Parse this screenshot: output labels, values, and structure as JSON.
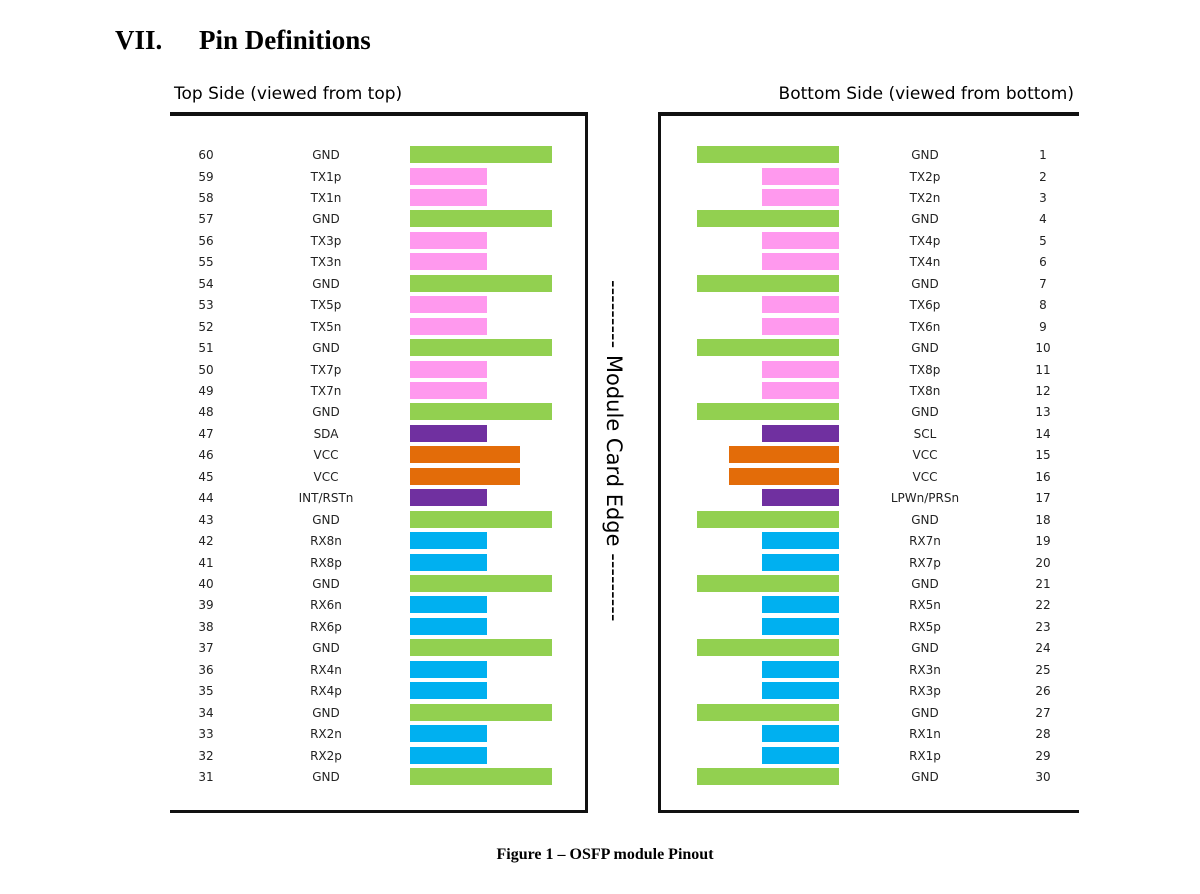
{
  "section": {
    "number": "VII.",
    "title": "Pin Definitions"
  },
  "top_side_label": "Top Side (viewed from top)",
  "bottom_side_label": "Bottom Side (viewed from bottom)",
  "edge_label": "--------- Module Card Edge ---------",
  "figure_caption": "Figure 1 – OSFP module Pinout",
  "signal_colors": {
    "ground": "#92d050",
    "transmit": "#ff99ee",
    "receive": "#00b0f0",
    "control": "#7030a0",
    "power": "#e36c09"
  },
  "top_pins": [
    {
      "number": "60",
      "name": "GND",
      "type": "ground"
    },
    {
      "number": "59",
      "name": "TX1p",
      "type": "transmit"
    },
    {
      "number": "58",
      "name": "TX1n",
      "type": "transmit"
    },
    {
      "number": "57",
      "name": "GND",
      "type": "ground"
    },
    {
      "number": "56",
      "name": "TX3p",
      "type": "transmit"
    },
    {
      "number": "55",
      "name": "TX3n",
      "type": "transmit"
    },
    {
      "number": "54",
      "name": "GND",
      "type": "ground"
    },
    {
      "number": "53",
      "name": "TX5p",
      "type": "transmit"
    },
    {
      "number": "52",
      "name": "TX5n",
      "type": "transmit"
    },
    {
      "number": "51",
      "name": "GND",
      "type": "ground"
    },
    {
      "number": "50",
      "name": "TX7p",
      "type": "transmit"
    },
    {
      "number": "49",
      "name": "TX7n",
      "type": "transmit"
    },
    {
      "number": "48",
      "name": "GND",
      "type": "ground"
    },
    {
      "number": "47",
      "name": "SDA",
      "type": "control"
    },
    {
      "number": "46",
      "name": "VCC",
      "type": "power"
    },
    {
      "number": "45",
      "name": "VCC",
      "type": "power"
    },
    {
      "number": "44",
      "name": "INT/RSTn",
      "type": "control"
    },
    {
      "number": "43",
      "name": "GND",
      "type": "ground"
    },
    {
      "number": "42",
      "name": "RX8n",
      "type": "receive"
    },
    {
      "number": "41",
      "name": "RX8p",
      "type": "receive"
    },
    {
      "number": "40",
      "name": "GND",
      "type": "ground"
    },
    {
      "number": "39",
      "name": "RX6n",
      "type": "receive"
    },
    {
      "number": "38",
      "name": "RX6p",
      "type": "receive"
    },
    {
      "number": "37",
      "name": "GND",
      "type": "ground"
    },
    {
      "number": "36",
      "name": "RX4n",
      "type": "receive"
    },
    {
      "number": "35",
      "name": "RX4p",
      "type": "receive"
    },
    {
      "number": "34",
      "name": "GND",
      "type": "ground"
    },
    {
      "number": "33",
      "name": "RX2n",
      "type": "receive"
    },
    {
      "number": "32",
      "name": "RX2p",
      "type": "receive"
    },
    {
      "number": "31",
      "name": "GND",
      "type": "ground"
    }
  ],
  "bottom_pins": [
    {
      "number": "1",
      "name": "GND",
      "type": "ground"
    },
    {
      "number": "2",
      "name": "TX2p",
      "type": "transmit"
    },
    {
      "number": "3",
      "name": "TX2n",
      "type": "transmit"
    },
    {
      "number": "4",
      "name": "GND",
      "type": "ground"
    },
    {
      "number": "5",
      "name": "TX4p",
      "type": "transmit"
    },
    {
      "number": "6",
      "name": "TX4n",
      "type": "transmit"
    },
    {
      "number": "7",
      "name": "GND",
      "type": "ground"
    },
    {
      "number": "8",
      "name": "TX6p",
      "type": "transmit"
    },
    {
      "number": "9",
      "name": "TX6n",
      "type": "transmit"
    },
    {
      "number": "10",
      "name": "GND",
      "type": "ground"
    },
    {
      "number": "11",
      "name": "TX8p",
      "type": "transmit"
    },
    {
      "number": "12",
      "name": "TX8n",
      "type": "transmit"
    },
    {
      "number": "13",
      "name": "GND",
      "type": "ground"
    },
    {
      "number": "14",
      "name": "SCL",
      "type": "control"
    },
    {
      "number": "15",
      "name": "VCC",
      "type": "power"
    },
    {
      "number": "16",
      "name": "VCC",
      "type": "power"
    },
    {
      "number": "17",
      "name": "LPWn/PRSn",
      "type": "control"
    },
    {
      "number": "18",
      "name": "GND",
      "type": "ground"
    },
    {
      "number": "19",
      "name": "RX7n",
      "type": "receive"
    },
    {
      "number": "20",
      "name": "RX7p",
      "type": "receive"
    },
    {
      "number": "21",
      "name": "GND",
      "type": "ground"
    },
    {
      "number": "22",
      "name": "RX5n",
      "type": "receive"
    },
    {
      "number": "23",
      "name": "RX5p",
      "type": "receive"
    },
    {
      "number": "24",
      "name": "GND",
      "type": "ground"
    },
    {
      "number": "25",
      "name": "RX3n",
      "type": "receive"
    },
    {
      "number": "26",
      "name": "RX3p",
      "type": "receive"
    },
    {
      "number": "27",
      "name": "GND",
      "type": "ground"
    },
    {
      "number": "28",
      "name": "RX1n",
      "type": "receive"
    },
    {
      "number": "29",
      "name": "RX1p",
      "type": "receive"
    },
    {
      "number": "30",
      "name": "GND",
      "type": "ground"
    }
  ]
}
